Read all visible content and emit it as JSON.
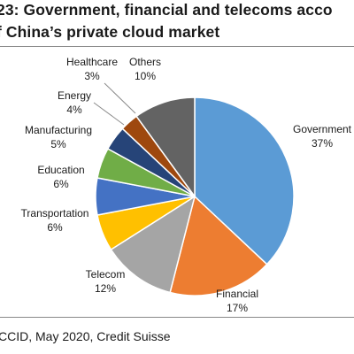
{
  "title_lines": [
    "23: Government, financial and telecoms acco",
    "f China’s private cloud market"
  ],
  "source": "CCID, May 2020, Credit Suisse",
  "chart_data": {
    "type": "pie",
    "categories": [
      "Government",
      "Financial",
      "Telecom",
      "Transportation",
      "Education",
      "Manufacturing",
      "Energy",
      "Healthcare",
      "Others"
    ],
    "values": [
      37,
      17,
      12,
      6,
      6,
      5,
      4,
      3,
      10
    ],
    "value_labels": [
      "37%",
      "17%",
      "12%",
      "6%",
      "6%",
      "5%",
      "4%",
      "3%",
      "10%"
    ],
    "colors": [
      "#5B9BD5",
      "#ED7D31",
      "#A5A5A5",
      "#FFC000",
      "#4472C4",
      "#70AD47",
      "#264478",
      "#9E480E",
      "#636363"
    ],
    "start": "12 o'clock",
    "direction": "clockwise",
    "legend": "none (data labels outside slices)"
  }
}
